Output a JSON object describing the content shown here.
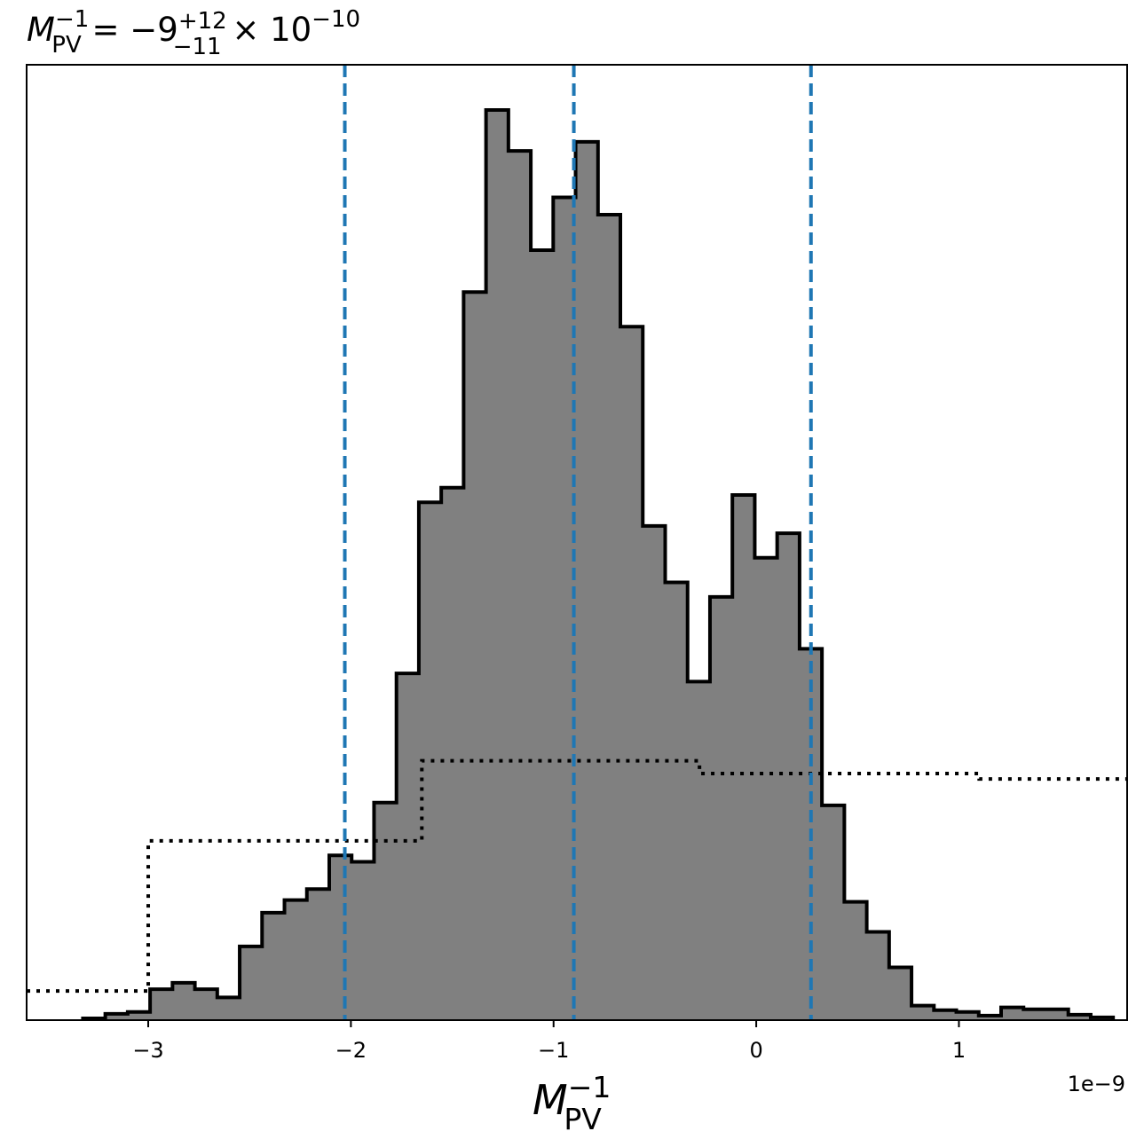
{
  "chart_data": {
    "type": "histogram",
    "title": {
      "lhs_base": "M",
      "lhs_sup": "−1",
      "lhs_sub": "PV",
      "eq": " = −9",
      "sup_err": "+12",
      "sub_err": "−11",
      "times": " × 10",
      "exp": "−10"
    },
    "xlabel": {
      "base": "M",
      "sup": "−1",
      "sub": "PV"
    },
    "x_offset_text": "1e−9",
    "x_scale": 1e-09,
    "xlim": [
      -3.6,
      1.83
    ],
    "ylim": [
      0,
      1.0
    ],
    "x_ticks": [
      {
        "value": -3,
        "label": "−3"
      },
      {
        "value": -2,
        "label": "−2"
      },
      {
        "value": -1,
        "label": "−1"
      },
      {
        "value": 0,
        "label": "0"
      },
      {
        "value": 1,
        "label": "1"
      }
    ],
    "y_ticks_shown": false,
    "colors": {
      "fill": "#808080",
      "edge": "#000000",
      "quantile": "#1f77b4",
      "prior": "#000000"
    },
    "histogram": {
      "bin_edges": [
        -3.3223,
        -3.2118,
        -3.1013,
        -2.9908,
        -2.8803,
        -2.7698,
        -2.6593,
        -2.5488,
        -2.4383,
        -2.3278,
        -2.2173,
        -2.1068,
        -1.9963,
        -1.8858,
        -1.7753,
        -1.6648,
        -1.5543,
        -1.4438,
        -1.3333,
        -1.2228,
        -1.1123,
        -1.0018,
        -0.8913,
        -0.7808,
        -0.6703,
        -0.5598,
        -0.4493,
        -0.3388,
        -0.2283,
        -0.1178,
        -0.0073,
        0.1032,
        0.2137,
        0.3242,
        0.4347,
        0.5452,
        0.6557,
        0.7662,
        0.8767,
        0.9872,
        1.0977,
        1.2082,
        1.3187,
        1.4292,
        1.5397,
        1.6502,
        1.7607
      ],
      "counts": [
        0.002,
        0.007,
        0.009,
        0.034,
        0.041,
        0.034,
        0.025,
        0.081,
        0.118,
        0.132,
        0.144,
        0.181,
        0.174,
        0.239,
        0.381,
        0.569,
        0.585,
        0.8,
        1.0,
        0.955,
        0.846,
        0.904,
        0.965,
        0.885,
        0.762,
        0.543,
        0.481,
        0.372,
        0.465,
        0.577,
        0.508,
        0.535,
        0.408,
        0.236,
        0.13,
        0.097,
        0.058,
        0.016,
        0.011,
        0.009,
        0.005,
        0.014,
        0.012,
        0.012,
        0.006,
        0.003
      ]
    },
    "quantiles": [
      -2.03,
      -0.9,
      0.27
    ],
    "prior_step": {
      "x": [
        -3.6,
        -3.0,
        -3.0,
        -1.65,
        -1.65,
        -0.28,
        -0.28,
        1.1,
        1.1,
        1.83
      ],
      "y": [
        0.032,
        0.032,
        0.197,
        0.197,
        0.285,
        0.285,
        0.271,
        0.271,
        0.265,
        0.265
      ]
    }
  }
}
